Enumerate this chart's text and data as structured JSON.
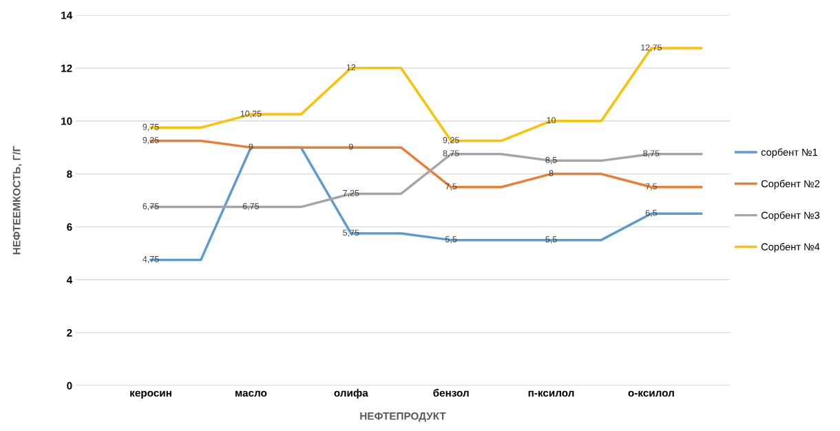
{
  "chart_data": {
    "type": "line",
    "xlabel": "НЕФТЕПРОДУКТ",
    "ylabel": "НЕФТЕЕМКОСТЬ, Г/Г",
    "categories": [
      "керосин",
      null,
      "масло",
      null,
      "олифа",
      null,
      "бензол",
      null,
      "п-ксилол",
      null,
      "о-ксилол",
      null
    ],
    "series": [
      {
        "name": "сорбент №1",
        "color": "#5b9bd5",
        "values": [
          4.75,
          4.75,
          9,
          9,
          5.75,
          5.75,
          5.5,
          5.5,
          5.5,
          5.5,
          6.5,
          6.5
        ],
        "value_labels": [
          "4,75",
          null,
          null,
          null,
          "5,75",
          null,
          "5,5",
          null,
          "5,5",
          null,
          "6,5",
          null
        ]
      },
      {
        "name": "Сорбент №2",
        "color": "#ed7d31",
        "values": [
          9.25,
          9.25,
          9,
          9,
          9,
          9,
          7.5,
          7.5,
          8,
          8,
          7.5,
          7.5
        ],
        "value_labels": [
          "9,25",
          null,
          "9",
          null,
          "9",
          null,
          "7,5",
          null,
          "8",
          null,
          "7,5",
          null
        ]
      },
      {
        "name": "Сорбент №3",
        "color": "#a5a5a5",
        "values": [
          6.75,
          6.75,
          6.75,
          6.75,
          7.25,
          7.25,
          8.75,
          8.75,
          8.5,
          8.5,
          8.75,
          8.75
        ],
        "value_labels": [
          "6,75",
          null,
          "6,75",
          null,
          "7,25",
          null,
          "8,75",
          null,
          "8,5",
          null,
          "8,75",
          null
        ]
      },
      {
        "name": "Сорбент №4",
        "color": "#ffc000",
        "values": [
          9.75,
          9.75,
          10.25,
          10.25,
          12,
          12,
          9.25,
          9.25,
          10,
          10,
          12.75,
          12.75
        ],
        "value_labels": [
          "9,75",
          null,
          "10,25",
          null,
          "12",
          null,
          "9,25",
          null,
          "10",
          null,
          "12,75",
          null
        ]
      }
    ],
    "ylim": [
      0,
      14
    ],
    "yticks": [
      0,
      2,
      4,
      6,
      8,
      10,
      12,
      14
    ],
    "grid": "y",
    "legend": "right",
    "marker": "none",
    "line_style": "solid"
  }
}
